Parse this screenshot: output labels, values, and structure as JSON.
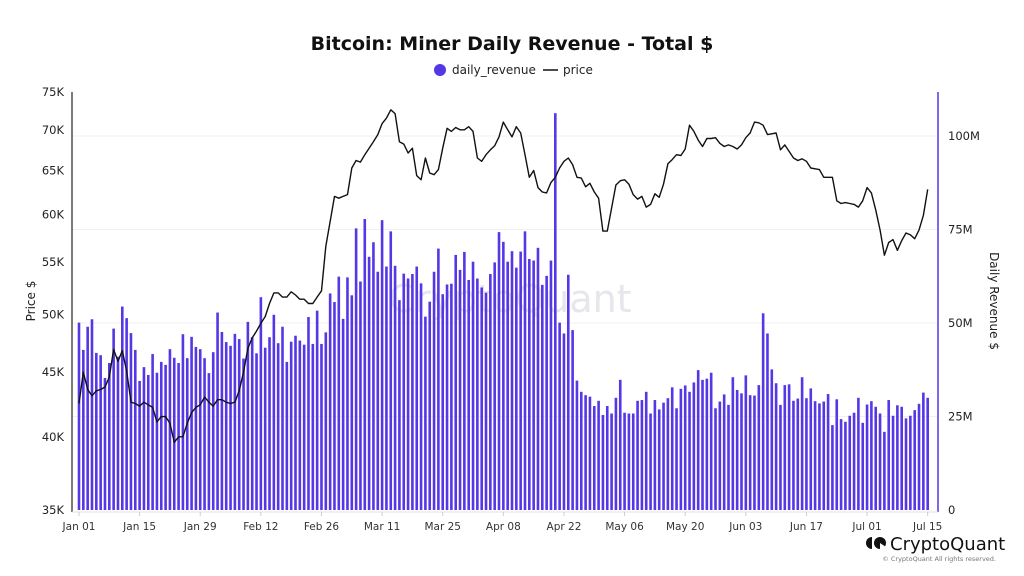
{
  "chart_data": {
    "type": "bar+line",
    "title": "Bitcoin: Miner Daily Revenue - Total $",
    "legend": {
      "position": "top-center",
      "items": [
        "daily_revenue",
        "price"
      ]
    },
    "ylabel_left": "Price $",
    "ylabel_right": "Daily Revenue $",
    "y_left": {
      "scale": "log",
      "range": [
        35000,
        75000
      ],
      "ticks": [
        35000,
        40000,
        45000,
        50000,
        55000,
        60000,
        65000,
        70000,
        75000
      ],
      "tick_labels": [
        "35K",
        "40K",
        "45K",
        "50K",
        "55K",
        "60K",
        "65K",
        "70K",
        "75K"
      ]
    },
    "y_right": {
      "scale": "linear",
      "range": [
        0,
        112000000
      ],
      "ticks": [
        0,
        25000000,
        50000000,
        75000000,
        100000000
      ],
      "tick_labels": [
        "0",
        "25M",
        "50M",
        "75M",
        "100M"
      ]
    },
    "x_tick_labels": [
      "Jan 01",
      "Jan 15",
      "Jan 29",
      "Feb 12",
      "Feb 26",
      "Mar 11",
      "Mar 25",
      "Apr 08",
      "Apr 22",
      "May 06",
      "May 20",
      "Jun 03",
      "Jun 17",
      "Jul 01",
      "Jul 15"
    ],
    "grid": "horizontal, aligned to right axis",
    "colors": {
      "daily_revenue": "#5537e6",
      "price": "#111111",
      "right_axis": "#5537e6"
    },
    "x": [
      "Jan 01",
      "Jan 02",
      "Jan 03",
      "Jan 04",
      "Jan 05",
      "Jan 06",
      "Jan 07",
      "Jan 08",
      "Jan 09",
      "Jan 10",
      "Jan 11",
      "Jan 12",
      "Jan 13",
      "Jan 14",
      "Jan 15",
      "Jan 16",
      "Jan 17",
      "Jan 18",
      "Jan 19",
      "Jan 20",
      "Jan 21",
      "Jan 22",
      "Jan 23",
      "Jan 24",
      "Jan 25",
      "Jan 26",
      "Jan 27",
      "Jan 28",
      "Jan 29",
      "Jan 30",
      "Jan 31",
      "Feb 01",
      "Feb 02",
      "Feb 03",
      "Feb 04",
      "Feb 05",
      "Feb 06",
      "Feb 07",
      "Feb 08",
      "Feb 09",
      "Feb 10",
      "Feb 11",
      "Feb 12",
      "Feb 13",
      "Feb 14",
      "Feb 15",
      "Feb 16",
      "Feb 17",
      "Feb 18",
      "Feb 19",
      "Feb 20",
      "Feb 21",
      "Feb 22",
      "Feb 23",
      "Feb 24",
      "Feb 25",
      "Feb 26",
      "Feb 27",
      "Feb 28",
      "Feb 29",
      "Mar 01",
      "Mar 02",
      "Mar 03",
      "Mar 04",
      "Mar 05",
      "Mar 06",
      "Mar 07",
      "Mar 08",
      "Mar 09",
      "Mar 10",
      "Mar 11",
      "Mar 12",
      "Mar 13",
      "Mar 14",
      "Mar 15",
      "Mar 16",
      "Mar 17",
      "Mar 18",
      "Mar 19",
      "Mar 20",
      "Mar 21",
      "Mar 22",
      "Mar 23",
      "Mar 24",
      "Mar 25",
      "Mar 26",
      "Mar 27",
      "Mar 28",
      "Mar 29",
      "Mar 30",
      "Mar 31",
      "Apr 01",
      "Apr 02",
      "Apr 03",
      "Apr 04",
      "Apr 05",
      "Apr 06",
      "Apr 07",
      "Apr 08",
      "Apr 09",
      "Apr 10",
      "Apr 11",
      "Apr 12",
      "Apr 13",
      "Apr 14",
      "Apr 15",
      "Apr 16",
      "Apr 17",
      "Apr 18",
      "Apr 19",
      "Apr 20",
      "Apr 21",
      "Apr 22",
      "Apr 23",
      "Apr 24",
      "Apr 25",
      "Apr 26",
      "Apr 27",
      "Apr 28",
      "Apr 29",
      "Apr 30",
      "May 01",
      "May 02",
      "May 03",
      "May 04",
      "May 05",
      "May 06",
      "May 07",
      "May 08",
      "May 09",
      "May 10",
      "May 11",
      "May 12",
      "May 13",
      "May 14",
      "May 15",
      "May 16",
      "May 17",
      "May 18",
      "May 19",
      "May 20",
      "May 21",
      "May 22",
      "May 23",
      "May 24",
      "May 25",
      "May 26",
      "May 27",
      "May 28",
      "May 29",
      "May 30",
      "May 31",
      "Jun 01",
      "Jun 02",
      "Jun 03",
      "Jun 04",
      "Jun 05",
      "Jun 06",
      "Jun 07",
      "Jun 08",
      "Jun 09",
      "Jun 10",
      "Jun 11",
      "Jun 12",
      "Jun 13",
      "Jun 14",
      "Jun 15",
      "Jun 16",
      "Jun 17",
      "Jun 18",
      "Jun 19",
      "Jun 20",
      "Jun 21",
      "Jun 22",
      "Jun 23",
      "Jun 24",
      "Jun 25",
      "Jun 26",
      "Jun 27",
      "Jun 28",
      "Jun 29",
      "Jun 30",
      "Jul 01",
      "Jul 02",
      "Jul 03",
      "Jul 04",
      "Jul 05",
      "Jul 06",
      "Jul 07",
      "Jul 08",
      "Jul 09",
      "Jul 10",
      "Jul 11",
      "Jul 12",
      "Jul 13",
      "Jul 14",
      "Jul 15"
    ],
    "series": [
      {
        "name": "daily_revenue",
        "type": "bar",
        "axis": "right",
        "unit": "USD millions",
        "values": [
          50.1,
          42.8,
          49.0,
          51.0,
          42.0,
          41.4,
          35.3,
          39.3,
          48.5,
          41.0,
          54.4,
          51.3,
          47.3,
          42.8,
          34.5,
          38.2,
          36.1,
          41.7,
          36.7,
          39.6,
          38.8,
          43.0,
          40.7,
          39.3,
          47.0,
          40.6,
          46.3,
          43.6,
          43.0,
          40.6,
          36.6,
          42.2,
          52.8,
          47.6,
          44.9,
          43.9,
          47.1,
          45.7,
          40.5,
          50.3,
          46.2,
          41.9,
          56.9,
          43.4,
          46.2,
          52.2,
          44.6,
          49.0,
          39.6,
          45.0,
          46.6,
          45.3,
          44.2,
          51.6,
          44.4,
          53.3,
          44.4,
          47.5,
          57.9,
          55.6,
          62.4,
          51.1,
          62.2,
          57.4,
          75.3,
          61.1,
          77.8,
          67.7,
          71.6,
          63.7,
          77.5,
          65.1,
          74.5,
          65.3,
          56.1,
          63.2,
          61.9,
          63.1,
          65.1,
          60.6,
          51.7,
          55.7,
          63.7,
          69.9,
          57.7,
          60.3,
          60.5,
          68.2,
          64.2,
          69.0,
          61.5,
          66.4,
          61.9,
          59.5,
          58.1,
          63.1,
          66.2,
          74.3,
          71.7,
          66.4,
          69.2,
          64.8,
          69.1,
          74.5,
          67.1,
          66.7,
          70.1,
          60.2,
          62.6,
          66.7,
          106.1,
          50.1,
          47.2,
          62.9,
          48.1,
          34.6,
          31.6,
          30.7,
          30.3,
          27.8,
          29.2,
          25.4,
          27.8,
          25.8,
          30.0,
          34.8,
          26.0,
          25.8,
          25.8,
          29.2,
          29.4,
          31.6,
          25.8,
          29.4,
          26.9,
          28.7,
          29.9,
          32.8,
          27.2,
          32.4,
          33.3,
          31.6,
          34.1,
          37.4,
          34.8,
          35.1,
          36.7,
          27.2,
          29.0,
          30.9,
          28.1,
          35.5,
          32.1,
          31.2,
          36.0,
          30.7,
          30.6,
          33.4,
          52.6,
          47.2,
          37.6,
          33.9,
          28.1,
          33.4,
          33.6,
          29.2,
          29.8,
          35.5,
          29.9,
          32.5,
          29.1,
          28.5,
          29.0,
          31.0,
          22.7,
          29.6,
          24.3,
          23.6,
          25.2,
          26.0,
          30.0,
          23.3,
          28.2,
          29.1,
          27.6,
          25.8,
          20.9,
          29.4,
          25.2,
          28.0,
          27.6,
          24.5,
          25.2,
          26.7,
          28.4,
          31.4,
          30.0
        ]
      },
      {
        "name": "price",
        "type": "line",
        "axis": "left",
        "unit": "USD",
        "values": [
          42500,
          45000,
          43600,
          43100,
          43500,
          43600,
          43800,
          44600,
          46900,
          45900,
          46800,
          45100,
          42600,
          42500,
          42300,
          42600,
          42400,
          42200,
          41100,
          41500,
          41500,
          41000,
          39600,
          40000,
          40000,
          41000,
          41800,
          42200,
          42400,
          43000,
          42600,
          42300,
          42800,
          42800,
          42600,
          42500,
          42600,
          43500,
          45000,
          47000,
          47900,
          48500,
          49200,
          49800,
          51000,
          52000,
          52000,
          51600,
          51600,
          52100,
          51800,
          51400,
          51400,
          51000,
          51000,
          51600,
          52200,
          56600,
          59200,
          62000,
          61800,
          62000,
          62200,
          65300,
          66200,
          66000,
          66900,
          67700,
          68500,
          69400,
          70800,
          71500,
          72600,
          72100,
          68500,
          68200,
          67100,
          67700,
          64400,
          63900,
          66500,
          64700,
          64500,
          65100,
          67700,
          70200,
          69800,
          70300,
          70000,
          70000,
          70400,
          69800,
          66500,
          66100,
          66900,
          67500,
          68000,
          69100,
          71000,
          70000,
          69100,
          70400,
          69600,
          66900,
          64200,
          65000,
          63000,
          62500,
          62400,
          63600,
          64200,
          65300,
          66100,
          66500,
          65700,
          64200,
          64100,
          63100,
          63500,
          62500,
          61800,
          58200,
          58200,
          60700,
          63300,
          63800,
          63900,
          63400,
          62200,
          61700,
          62000,
          60800,
          61100,
          62300,
          61900,
          63400,
          65800,
          66300,
          66900,
          66800,
          67600,
          70600,
          69800,
          68700,
          67900,
          68900,
          68900,
          69000,
          68300,
          67900,
          68100,
          67900,
          67600,
          68100,
          69000,
          69600,
          71000,
          70900,
          70600,
          69400,
          69500,
          69600,
          67500,
          68100,
          67300,
          66500,
          66200,
          66400,
          66100,
          65300,
          65200,
          65100,
          64200,
          64200,
          64200,
          61500,
          61200,
          61300,
          61200,
          61100,
          60800,
          61500,
          63000,
          62400,
          60500,
          58300,
          55700,
          57000,
          57300,
          56200,
          57200,
          58000,
          57800,
          57400,
          58300,
          59900,
          62800
        ]
      }
    ]
  },
  "branding": {
    "logo_text": "CryptoQuant",
    "copyright": "© CryptoQuant All rights reserved.",
    "watermark": "CryptoQuant"
  }
}
